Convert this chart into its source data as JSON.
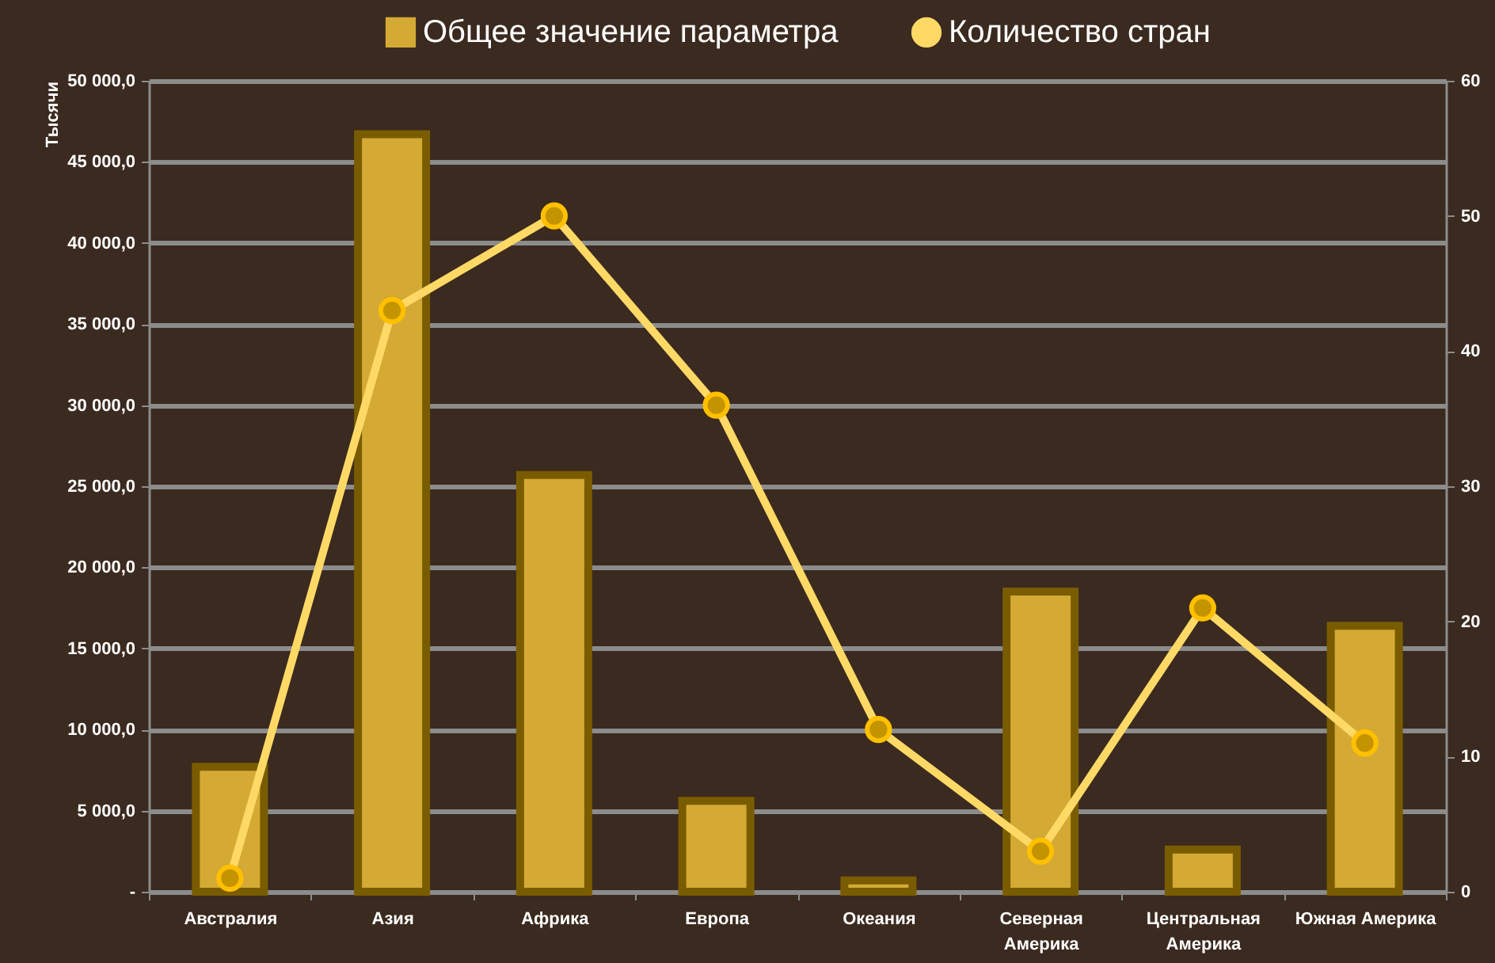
{
  "chart_data": {
    "type": "bar",
    "categories": [
      "Австралия",
      "Азия",
      "Африка",
      "Европа",
      "Океания",
      "Северная Америка",
      "Центральная Америка",
      "Южная Америка"
    ],
    "series": [
      {
        "name": "Общее значение параметра",
        "color": "#d4aa35",
        "values": [
          7700,
          46700,
          25700,
          5600,
          700,
          18500,
          2600,
          16400
        ]
      },
      {
        "name": "Количество стран",
        "type": "line",
        "axis": "y2",
        "color": "#ffd966",
        "values": [
          1,
          43,
          50,
          36,
          12,
          3,
          21,
          11
        ]
      }
    ],
    "ylabel": "Тысячи",
    "ylim": [
      0,
      50000
    ],
    "yticks": [
      {
        "value": 0,
        "label": "-"
      },
      {
        "value": 5000,
        "label": "5 000,0"
      },
      {
        "value": 10000,
        "label": "10 000,0"
      },
      {
        "value": 15000,
        "label": "15 000,0"
      },
      {
        "value": 20000,
        "label": "20 000,0"
      },
      {
        "value": 25000,
        "label": "25 000,0"
      },
      {
        "value": 30000,
        "label": "30 000,0"
      },
      {
        "value": 35000,
        "label": "35 000,0"
      },
      {
        "value": 40000,
        "label": "40 000,0"
      },
      {
        "value": 45000,
        "label": "45 000,0"
      },
      {
        "value": 50000,
        "label": "50 000,0"
      }
    ],
    "y2lim": [
      0,
      60
    ],
    "y2ticks": [
      0,
      10,
      20,
      30,
      40,
      50,
      60
    ],
    "grid": "y",
    "legend": "top",
    "marker": "circle"
  }
}
